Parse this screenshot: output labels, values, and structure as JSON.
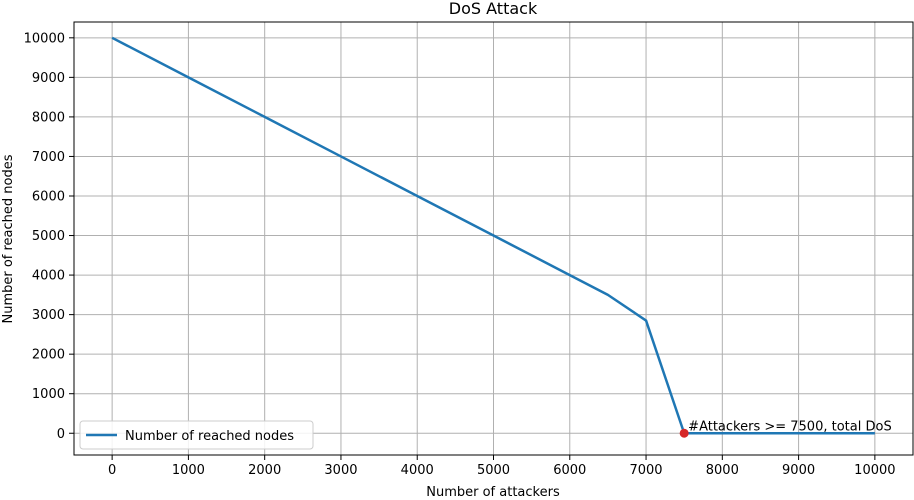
{
  "chart_data": {
    "type": "line",
    "title": "DoS Attack",
    "xlabel": "Number of attackers",
    "ylabel": "Number of reached nodes",
    "xlim": [
      -500,
      10500
    ],
    "ylim": [
      -550,
      10400
    ],
    "xticks": [
      0,
      1000,
      2000,
      3000,
      4000,
      5000,
      6000,
      7000,
      8000,
      9000,
      10000
    ],
    "yticks": [
      0,
      1000,
      2000,
      3000,
      4000,
      5000,
      6000,
      7000,
      8000,
      9000,
      10000
    ],
    "grid": true,
    "legend_position": "lower-left",
    "series": [
      {
        "name": "Number of reached nodes",
        "color": "#1f77b4",
        "x": [
          0,
          1000,
          2000,
          3000,
          4000,
          5000,
          6000,
          6500,
          7000,
          7500,
          8000,
          9000,
          10000
        ],
        "y": [
          10000,
          9000,
          8000,
          7000,
          6000,
          5000,
          4000,
          3500,
          2850,
          0,
          0,
          0,
          0
        ]
      }
    ],
    "marker": {
      "x": 7500,
      "y": 0,
      "color": "#d62728"
    },
    "annotation": {
      "text": "#Attackers >= 7500, total DoS",
      "x": 7500,
      "y": 0
    }
  }
}
